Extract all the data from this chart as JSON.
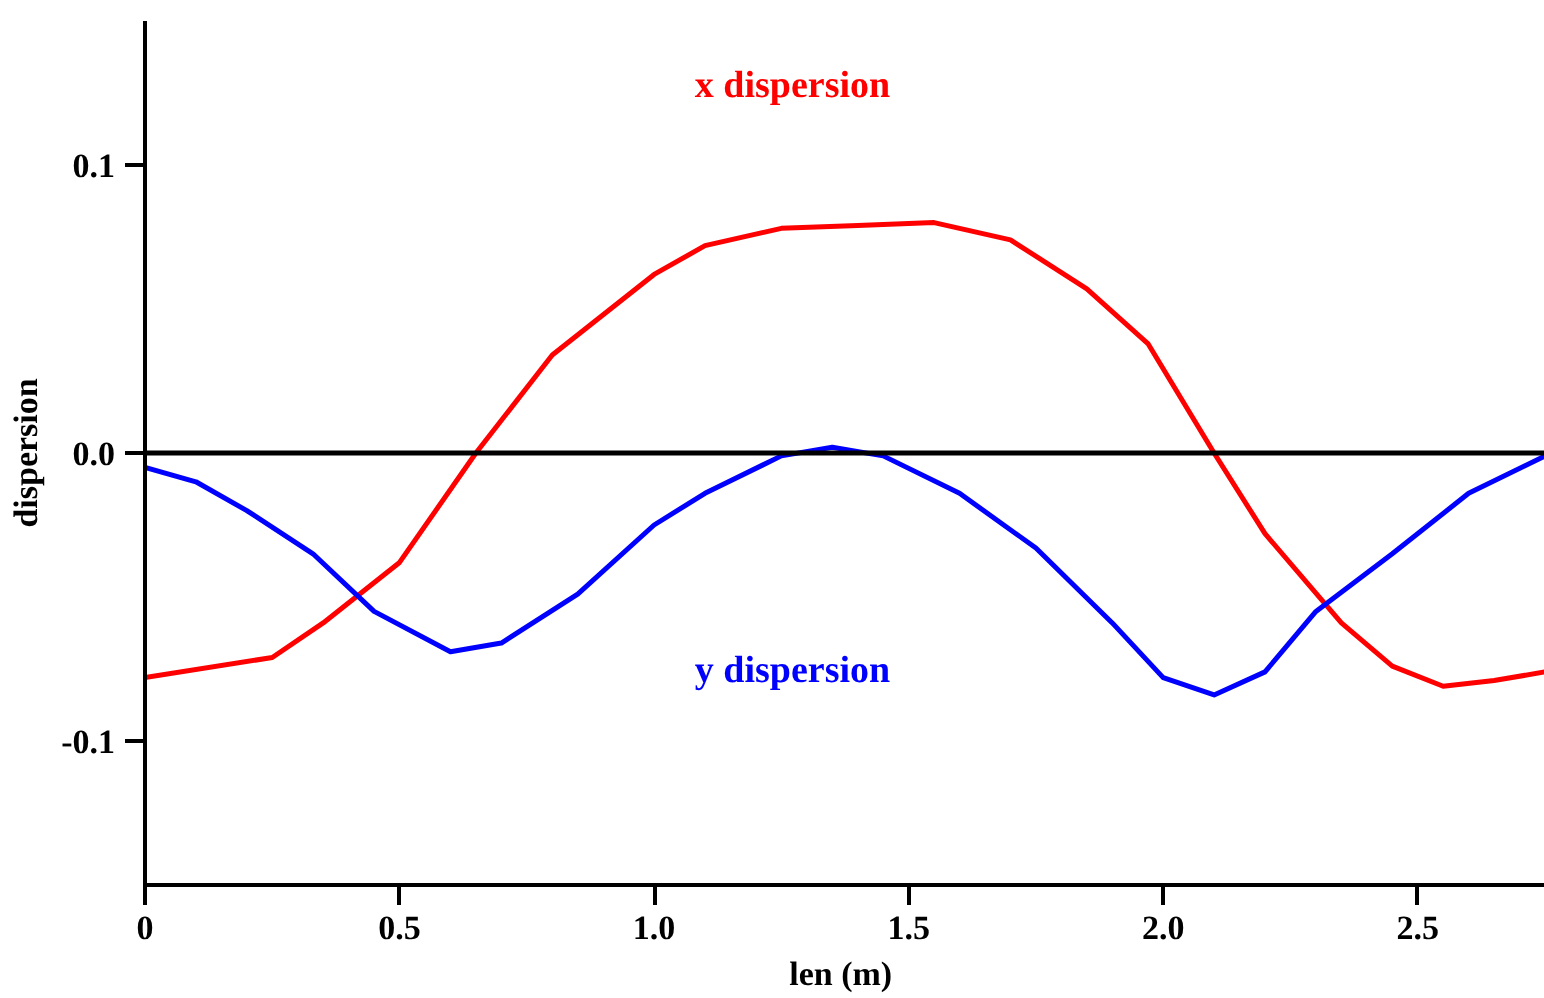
{
  "chart_data": {
    "type": "line",
    "xlabel": "len  (m)",
    "ylabel": "dispersion",
    "xlim": [
      0,
      2.75
    ],
    "ylim": [
      -0.15,
      0.15
    ],
    "xticks": [
      0,
      {
        "value": 0.5,
        "label": "0.5"
      },
      {
        "value": 1,
        "label": "1.0"
      },
      {
        "value": 1.5,
        "label": "1.5"
      },
      {
        "value": 2,
        "label": "2.0"
      },
      {
        "value": 2.5,
        "label": "2.5"
      }
    ],
    "yticks": [
      {
        "value": -0.1,
        "label": "-0.1"
      },
      {
        "value": 0,
        "label": "0.0"
      },
      {
        "value": 0.1,
        "label": "0.1"
      }
    ],
    "grid": false,
    "marker": "none",
    "line_style": "solid",
    "ref_lines": [
      {
        "axis": "y",
        "value": 0,
        "label": null,
        "color": "#000000"
      }
    ],
    "series": [
      {
        "name": "x dispersion",
        "color": "#ff0000",
        "x": [
          0,
          0.25,
          0.35,
          0.5,
          0.65,
          0.8,
          1.0,
          1.1,
          1.25,
          1.4,
          1.55,
          1.7,
          1.85,
          1.97,
          2.1,
          2.2,
          2.35,
          2.45,
          2.55,
          2.65,
          2.75
        ],
        "values": [
          -0.078,
          -0.071,
          -0.059,
          -0.038,
          0,
          0.034,
          0.062,
          0.072,
          0.078,
          0.079,
          0.08,
          0.074,
          0.057,
          0.038,
          0,
          -0.028,
          -0.059,
          -0.074,
          -0.081,
          -0.079,
          -0.076
        ]
      },
      {
        "name": "y dispersion",
        "color": "#0000ff",
        "x": [
          0,
          0.1,
          0.2,
          0.33,
          0.45,
          0.6,
          0.7,
          0.85,
          1.0,
          1.1,
          1.25,
          1.35,
          1.45,
          1.6,
          1.75,
          1.9,
          2.0,
          2.1,
          2.2,
          2.3,
          2.45,
          2.6,
          2.75
        ],
        "values": [
          -0.005,
          -0.01,
          -0.02,
          -0.035,
          -0.055,
          -0.069,
          -0.066,
          -0.049,
          -0.025,
          -0.014,
          -0.001,
          0.002,
          -0.001,
          -0.014,
          -0.033,
          -0.059,
          -0.078,
          -0.084,
          -0.076,
          -0.055,
          -0.035,
          -0.014,
          -0.001
        ]
      }
    ]
  }
}
